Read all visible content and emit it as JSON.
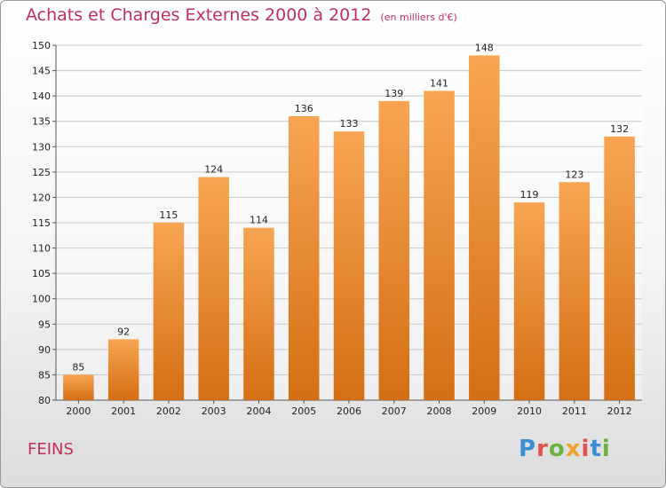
{
  "title": "Achats et Charges Externes 2000 à 2012",
  "unit": "(en milliers d'€)",
  "place": "FEINS",
  "logo": {
    "letters": [
      "P",
      "r",
      "o",
      "x",
      "i",
      "t",
      "i"
    ],
    "colors": [
      "#3a8fd4",
      "#e0534a",
      "#6cb33f",
      "#f0a22a",
      "#e0534a",
      "#3a8fd4",
      "#6cb33f"
    ]
  },
  "colors": {
    "bar_top": "#f7a552",
    "bar_bottom": "#d46e14",
    "accent": "#c0305a"
  },
  "chart_data": {
    "type": "bar",
    "title": "Achats et Charges Externes 2000 à 2012",
    "xlabel": "",
    "ylabel": "",
    "categories": [
      "2000",
      "2001",
      "2002",
      "2003",
      "2004",
      "2005",
      "2006",
      "2007",
      "2008",
      "2009",
      "2010",
      "2011",
      "2012"
    ],
    "values": [
      85,
      92,
      115,
      124,
      114,
      136,
      133,
      139,
      141,
      148,
      119,
      123,
      132
    ],
    "ylim": [
      80,
      150
    ],
    "yticks": [
      80,
      85,
      90,
      95,
      100,
      105,
      110,
      115,
      120,
      125,
      130,
      135,
      140,
      145,
      150
    ],
    "grid": true,
    "data_labels": true
  }
}
